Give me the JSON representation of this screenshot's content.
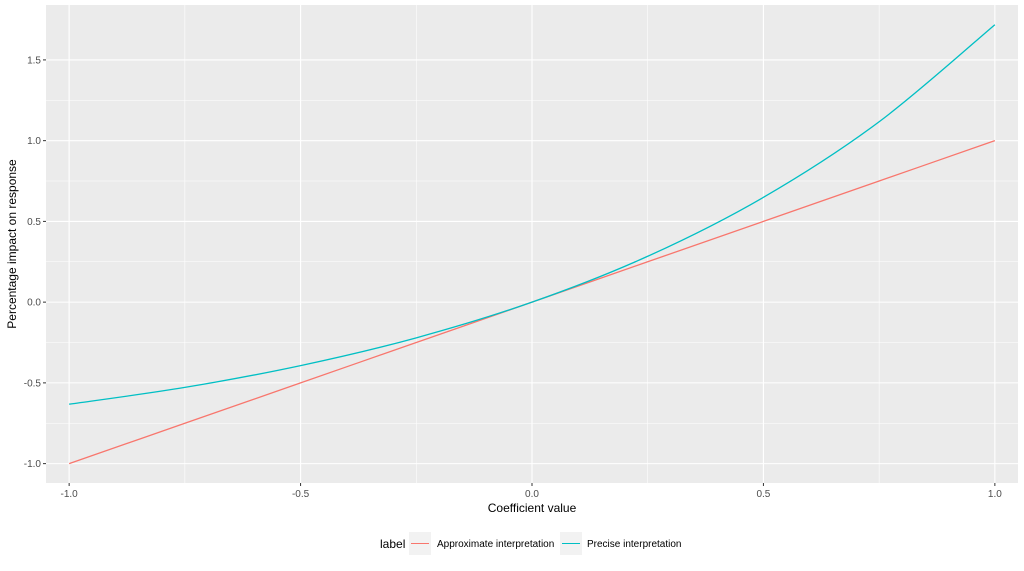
{
  "chart_data": {
    "type": "line",
    "xlabel": "Coefficient value",
    "ylabel": "Percentage impact on response",
    "xlim": [
      -1.05,
      1.05
    ],
    "ylim": [
      -1.12,
      1.84
    ],
    "x_ticks": [
      -1.0,
      -0.5,
      0.0,
      0.5,
      1.0
    ],
    "x_tick_labels": [
      "-1.0",
      "-0.5",
      "0.0",
      "0.5",
      "1.0"
    ],
    "y_ticks": [
      -1.0,
      -0.5,
      0.0,
      0.5,
      1.0,
      1.5
    ],
    "y_tick_labels": [
      "-1.0",
      "-0.5",
      "0.0",
      "0.5",
      "1.0",
      "1.5"
    ],
    "grid": true,
    "legend": {
      "title": "label",
      "position": "bottom"
    },
    "x": [
      -1.0,
      -0.75,
      -0.5,
      -0.25,
      0.0,
      0.25,
      0.5,
      0.75,
      1.0
    ],
    "series": [
      {
        "name": "Approximate interpretation",
        "color": "#f8766d",
        "values": [
          -1.0,
          -0.75,
          -0.5,
          -0.25,
          0.0,
          0.25,
          0.5,
          0.75,
          1.0
        ]
      },
      {
        "name": "Precise interpretation",
        "color": "#00bfc4",
        "values": [
          -0.632,
          -0.528,
          -0.393,
          -0.221,
          0.0,
          0.284,
          0.649,
          1.117,
          1.718
        ]
      }
    ]
  }
}
